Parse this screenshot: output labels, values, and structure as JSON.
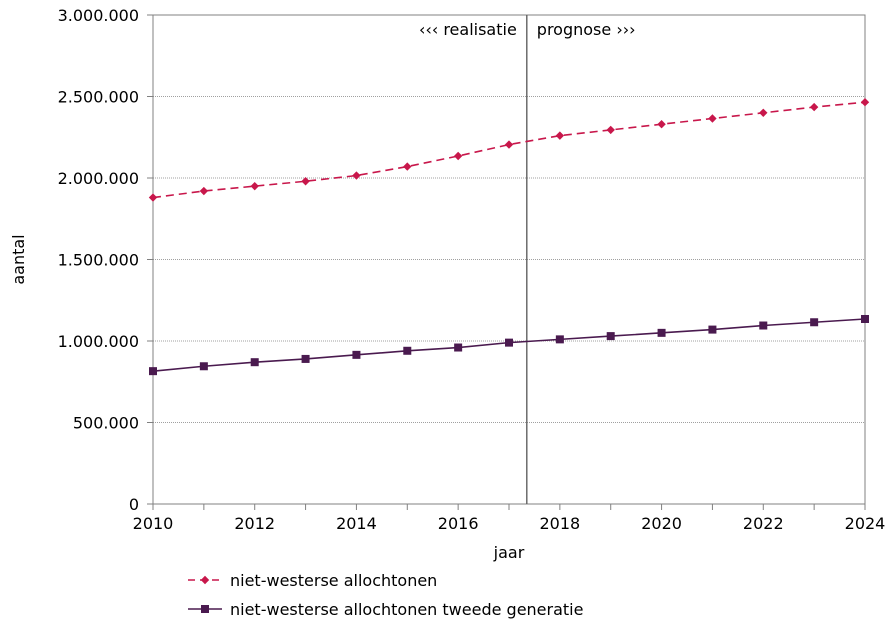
{
  "chart_data": {
    "type": "line",
    "title": "",
    "xlabel": "jaar",
    "ylabel": "aantal",
    "xlim": [
      2010,
      2024
    ],
    "ylim": [
      0,
      3000000
    ],
    "x_ticks": [
      2010,
      2012,
      2014,
      2016,
      2018,
      2020,
      2022,
      2024
    ],
    "y_ticks": [
      0,
      500000,
      1000000,
      1500000,
      2000000,
      2500000,
      3000000
    ],
    "y_tick_labels": [
      "0",
      "500.000",
      "1.000.000",
      "1.500.000",
      "2.000.000",
      "2.500.000",
      "3.000.000"
    ],
    "x_tick_labels": [
      "2010",
      "2012",
      "2014",
      "2016",
      "2018",
      "2020",
      "2022",
      "2024"
    ],
    "grid": "horizontal",
    "legend_position": "bottom",
    "divider_x": 2017.35,
    "annotations": {
      "left": "‹‹‹ realisatie",
      "right": "prognose ›››"
    },
    "x": [
      2010,
      2011,
      2012,
      2013,
      2014,
      2015,
      2016,
      2017,
      2018,
      2019,
      2020,
      2021,
      2022,
      2023,
      2024
    ],
    "series": [
      {
        "name": "niet-westerse allochtonen",
        "color": "#c8174b",
        "line_style": "dashed",
        "marker": "diamond",
        "values": [
          1880000,
          1920000,
          1950000,
          1980000,
          2015000,
          2070000,
          2135000,
          2205000,
          2260000,
          2295000,
          2330000,
          2365000,
          2400000,
          2435000,
          2465000
        ]
      },
      {
        "name": "niet-westerse allochtonen tweede generatie",
        "color": "#4a1a4f",
        "line_style": "solid",
        "marker": "square",
        "values": [
          815000,
          845000,
          870000,
          890000,
          915000,
          940000,
          960000,
          990000,
          1010000,
          1030000,
          1050000,
          1070000,
          1095000,
          1115000,
          1135000
        ]
      }
    ]
  }
}
